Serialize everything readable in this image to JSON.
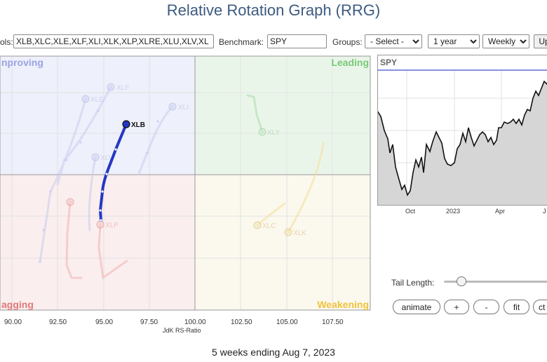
{
  "title": "Relative Rotation Graph (RRG)",
  "toolbar": {
    "symbols_label": "ols:",
    "symbols_value": "XLB,XLC,XLE,XLF,XLI,XLK,XLP,XLRE,XLU,XLV,XL",
    "benchmark_label": "Benchmark:",
    "benchmark_value": "SPY",
    "groups_label": "Groups:",
    "groups_value": "- Select -",
    "period_value": "1 year",
    "interval_value": "Weekly",
    "update_label": "Up"
  },
  "rrg": {
    "quadrants": {
      "improving": "nproving",
      "leading": "Leading",
      "weakening": "Weakening",
      "lagging": "agging"
    },
    "x_ticks": [
      "90.00",
      "92.50",
      "95.00",
      "97.50",
      "100.00",
      "102.50",
      "105.00",
      "107.50"
    ],
    "x_title": "JdK RS-Ratio",
    "colors": {
      "improving_bg": "#eef0fb",
      "leading_bg": "#eaf5ea",
      "weakening_bg": "#fbf8ee",
      "lagging_bg": "#fbeeee",
      "improving_text": "#9aa3e0",
      "leading_text": "#77c977",
      "weakening_text": "#f0c23c",
      "lagging_text": "#e07a7a",
      "highlight": "#2437c4"
    },
    "symbols": [
      {
        "name": "XLB",
        "x": 96.2,
        "highlighted": true
      },
      {
        "name": "XLF",
        "x": 95.4,
        "highlighted": false
      },
      {
        "name": "XLI",
        "x": 98.9,
        "highlighted": false
      },
      {
        "name": "XLE",
        "x": 93.9,
        "highlighted": false
      },
      {
        "name": "XLV",
        "x": 94.6,
        "highlighted": false
      },
      {
        "name": "XLY",
        "x": 103.7,
        "highlighted": false
      },
      {
        "name": "XLC",
        "x": 103.4,
        "highlighted": false
      },
      {
        "name": "XLK",
        "x": 105.1,
        "highlighted": false
      },
      {
        "name": "XLP",
        "x": 94.8,
        "highlighted": false
      },
      {
        "name": "XLU",
        "x": 92.1,
        "highlighted": false
      }
    ]
  },
  "spy_chart": {
    "symbol": "SPY",
    "x_labels": [
      "Oct",
      "2023",
      "Apr",
      "J"
    ]
  },
  "controls": {
    "tail_length_label": "Tail Length:",
    "tail_length_value": 5,
    "animate_label": "animate",
    "plus_label": "+",
    "minus_label": "-",
    "fit_label": "fit",
    "ctr_label": "ct"
  },
  "footer": "5 weeks ending Aug 7, 2023"
}
